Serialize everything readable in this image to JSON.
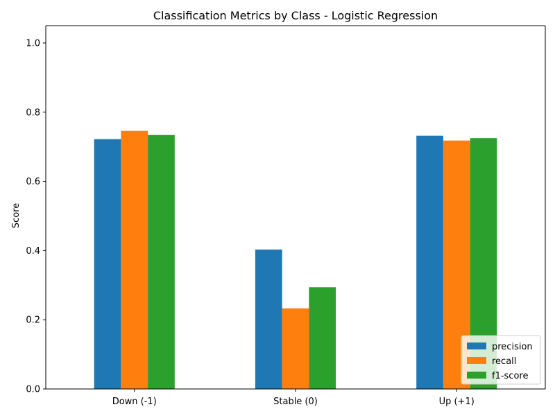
{
  "chart_data": {
    "type": "bar",
    "title": "Classification Metrics by Class - Logistic Regression",
    "xlabel": "",
    "ylabel": "Score",
    "categories": [
      "Down (-1)",
      "Stable (0)",
      "Up (+1)"
    ],
    "ylim": [
      0,
      1.05
    ],
    "yticks": [
      "0.0",
      "0.2",
      "0.4",
      "0.6",
      "0.8",
      "1.0"
    ],
    "series": [
      {
        "name": "precision",
        "color": "#1f77b4",
        "values": [
          0.722,
          0.403,
          0.732
        ]
      },
      {
        "name": "recall",
        "color": "#ff7f0e",
        "values": [
          0.746,
          0.233,
          0.718
        ]
      },
      {
        "name": "f1-score",
        "color": "#2ca02c",
        "values": [
          0.734,
          0.294,
          0.725
        ]
      }
    ],
    "legend_position": "lower-right",
    "grid": false
  }
}
